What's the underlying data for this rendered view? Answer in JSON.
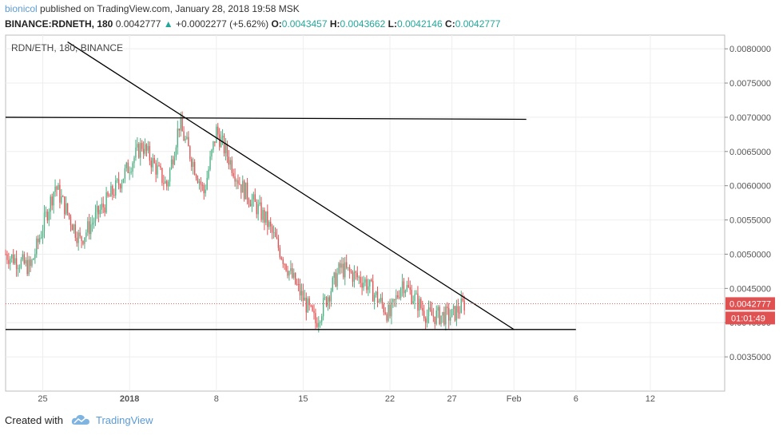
{
  "header": {
    "author": "bionicol",
    "published_text": "published on TradingView.com, January 28, 2018 19:58 MSK",
    "symbol": "BINANCE:RDNETH, 180",
    "last": "0.0042777",
    "change_arrow": "▲",
    "change": "+0.0002277 (+5.62%)",
    "open_label": "O:",
    "open": "0.0043457",
    "high_label": "H:",
    "high": "0.0043662",
    "low_label": "L:",
    "low": "0.0042146",
    "close_label": "C:",
    "close": "0.0042777"
  },
  "chart_data": {
    "type": "candlestick",
    "legend": "RDN/ETH, 180, BINANCE",
    "ylim": [
      0.003,
      0.0082
    ],
    "y_ticks": [
      "0.0080000",
      "0.0075000",
      "0.0070000",
      "0.0065000",
      "0.0060000",
      "0.0055000",
      "0.0050000",
      "0.0045000",
      "0.0040000",
      "0.0035000"
    ],
    "x_ticks": [
      "25",
      "2018",
      "8",
      "15",
      "22",
      "27",
      "Feb",
      "6",
      "12"
    ],
    "x_tick_dates": [
      "2017-12-25",
      "2018-01-01",
      "2018-01-08",
      "2018-01-15",
      "2018-01-22",
      "2018-01-27",
      "2018-02-01",
      "2018-02-06",
      "2018-02-12"
    ],
    "x_range": [
      "2017-12-22",
      "2018-02-18"
    ],
    "last_price_label": "0.0042777",
    "countdown_label": "01:01:49",
    "colors": {
      "up": "#4caf82",
      "down": "#e05252",
      "trendline": "#000000",
      "last_price": "#e05252"
    },
    "key_points": [
      {
        "date": "2017-12-22",
        "close": 0.005
      },
      {
        "date": "2017-12-24",
        "close": 0.0048
      },
      {
        "date": "2017-12-26",
        "close": 0.006
      },
      {
        "date": "2017-12-28",
        "close": 0.0052
      },
      {
        "date": "2017-12-31",
        "close": 0.006
      },
      {
        "date": "2018-01-02",
        "close": 0.0066
      },
      {
        "date": "2018-01-04",
        "close": 0.006
      },
      {
        "date": "2018-01-05",
        "close": 0.0069
      },
      {
        "date": "2018-01-07",
        "close": 0.0059
      },
      {
        "date": "2018-01-08",
        "close": 0.0068
      },
      {
        "date": "2018-01-10",
        "close": 0.006
      },
      {
        "date": "2018-01-12",
        "close": 0.0055
      },
      {
        "date": "2018-01-14",
        "close": 0.0047
      },
      {
        "date": "2018-01-16",
        "close": 0.004
      },
      {
        "date": "2018-01-18",
        "close": 0.0048
      },
      {
        "date": "2018-01-20",
        "close": 0.0046
      },
      {
        "date": "2018-01-22",
        "close": 0.0041
      },
      {
        "date": "2018-01-23",
        "close": 0.0046
      },
      {
        "date": "2018-01-25",
        "close": 0.0041
      },
      {
        "date": "2018-01-27",
        "close": 0.0041
      },
      {
        "date": "2018-01-28",
        "close": 0.0042777
      }
    ],
    "trendlines": [
      {
        "name": "descending resistance",
        "from": {
          "date": "2017-12-27",
          "price": 0.0081
        },
        "to": {
          "date": "2018-02-01",
          "price": 0.0039
        }
      },
      {
        "name": "upper horizontal",
        "from": {
          "date": "2017-12-22",
          "price": 0.007
        },
        "to": {
          "date": "2018-02-02",
          "price": 0.00697
        }
      },
      {
        "name": "support",
        "from": {
          "date": "2017-12-22",
          "price": 0.0039
        },
        "to": {
          "date": "2018-02-06",
          "price": 0.0039
        }
      }
    ]
  },
  "footer": {
    "created_with": "Created with",
    "brand": "TradingView"
  }
}
